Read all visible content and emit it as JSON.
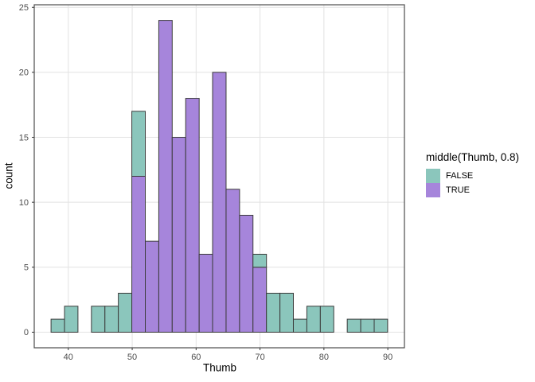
{
  "chart_data": {
    "type": "bar",
    "variant": "stacked-histogram",
    "title": "",
    "xlabel": "Thumb",
    "ylabel": "count",
    "x_ticks": [
      40,
      50,
      60,
      70,
      80,
      90
    ],
    "y_ticks": [
      0,
      5,
      10,
      15,
      20,
      25
    ],
    "xlim": [
      34.67,
      92.6
    ],
    "ylim": [
      -1.2,
      25.2
    ],
    "grid": "on",
    "legend": {
      "position": "right",
      "title": "middle(Thumb, 0.8)",
      "items": [
        {
          "label": "FALSE",
          "color": "#8BC6BC"
        },
        {
          "label": "TRUE",
          "color": "#A685DB"
        }
      ]
    },
    "colors": {
      "grid": "#E2E2E2",
      "panel_border": "#4D4D4D",
      "bar_border": "#3B3B3B",
      "tick": "#333333",
      "tick_label": "#4D4D4D",
      "background": "#FFFFFF"
    },
    "bins": [
      {
        "x0": 37.3,
        "x1": 39.41,
        "false_count": 1,
        "true_count": 0
      },
      {
        "x0": 39.41,
        "x1": 41.51,
        "false_count": 2,
        "true_count": 0
      },
      {
        "x0": 41.51,
        "x1": 43.62,
        "false_count": 0,
        "true_count": 0
      },
      {
        "x0": 43.62,
        "x1": 45.73,
        "false_count": 2,
        "true_count": 0
      },
      {
        "x0": 45.73,
        "x1": 47.83,
        "false_count": 2,
        "true_count": 0
      },
      {
        "x0": 47.83,
        "x1": 49.94,
        "false_count": 3,
        "true_count": 0
      },
      {
        "x0": 49.94,
        "x1": 52.05,
        "false_count": 5,
        "true_count": 12
      },
      {
        "x0": 52.05,
        "x1": 54.16,
        "false_count": 0,
        "true_count": 7
      },
      {
        "x0": 54.16,
        "x1": 56.26,
        "false_count": 0,
        "true_count": 24
      },
      {
        "x0": 56.26,
        "x1": 58.37,
        "false_count": 0,
        "true_count": 15
      },
      {
        "x0": 58.37,
        "x1": 60.48,
        "false_count": 0,
        "true_count": 18
      },
      {
        "x0": 60.48,
        "x1": 62.58,
        "false_count": 0,
        "true_count": 6
      },
      {
        "x0": 62.58,
        "x1": 64.69,
        "false_count": 0,
        "true_count": 20
      },
      {
        "x0": 64.69,
        "x1": 66.8,
        "false_count": 0,
        "true_count": 11
      },
      {
        "x0": 66.8,
        "x1": 68.9,
        "false_count": 0,
        "true_count": 9
      },
      {
        "x0": 68.9,
        "x1": 71.01,
        "false_count": 1,
        "true_count": 5
      },
      {
        "x0": 71.01,
        "x1": 73.12,
        "false_count": 3,
        "true_count": 0
      },
      {
        "x0": 73.12,
        "x1": 75.22,
        "false_count": 3,
        "true_count": 0
      },
      {
        "x0": 75.22,
        "x1": 77.33,
        "false_count": 1,
        "true_count": 0
      },
      {
        "x0": 77.33,
        "x1": 79.44,
        "false_count": 2,
        "true_count": 0
      },
      {
        "x0": 79.44,
        "x1": 81.54,
        "false_count": 2,
        "true_count": 0
      },
      {
        "x0": 81.54,
        "x1": 83.65,
        "false_count": 0,
        "true_count": 0
      },
      {
        "x0": 83.65,
        "x1": 85.76,
        "false_count": 1,
        "true_count": 0
      },
      {
        "x0": 85.76,
        "x1": 87.87,
        "false_count": 1,
        "true_count": 0
      },
      {
        "x0": 87.87,
        "x1": 89.97,
        "false_count": 1,
        "true_count": 0
      }
    ]
  }
}
